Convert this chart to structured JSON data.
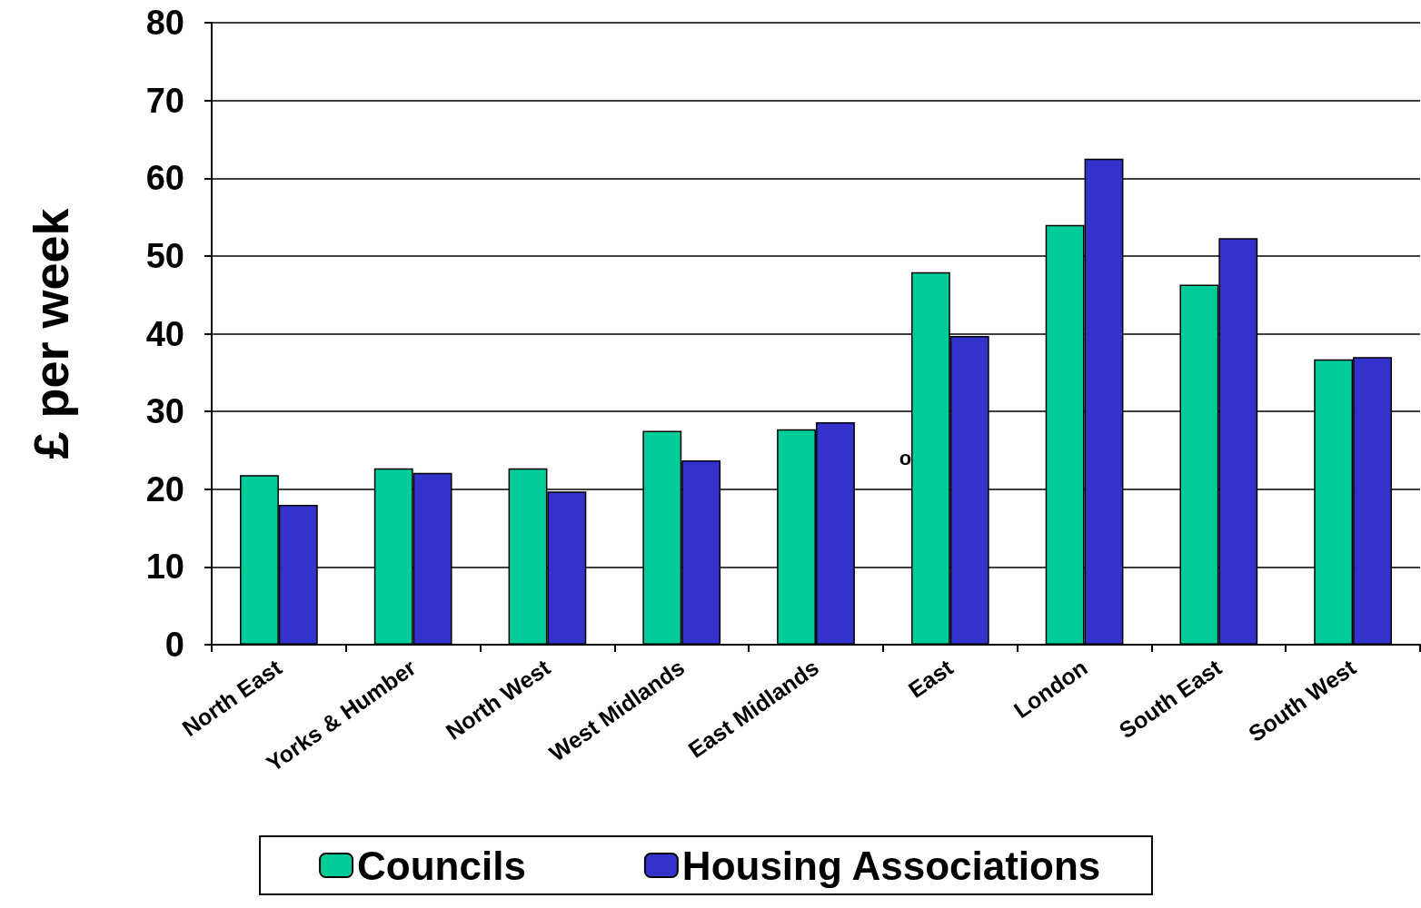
{
  "chart_data": {
    "type": "bar",
    "ylabel": "£ per week",
    "categories": [
      "North East",
      "Yorks & Humber",
      "North West",
      "West Midlands",
      "East Midlands",
      "East",
      "London",
      "South East",
      "South West"
    ],
    "series": [
      {
        "name": "Councils",
        "color": "#00cc99",
        "values": [
          21.8,
          22.7,
          22.7,
          27.5,
          27.7,
          47.9,
          54.0,
          46.3,
          36.7
        ]
      },
      {
        "name": "Housing Associations",
        "color": "#3333cc",
        "values": [
          18.0,
          22.1,
          19.7,
          23.7,
          28.6,
          39.7,
          62.5,
          52.3,
          37.0
        ]
      }
    ],
    "ylim": [
      0,
      80
    ],
    "yticks": [
      0,
      10,
      20,
      30,
      40,
      50,
      60,
      70,
      80
    ],
    "grid": "y",
    "legend": "bottom",
    "annotations": [
      {
        "text": "o",
        "x": "East",
        "y": 24
      }
    ]
  }
}
